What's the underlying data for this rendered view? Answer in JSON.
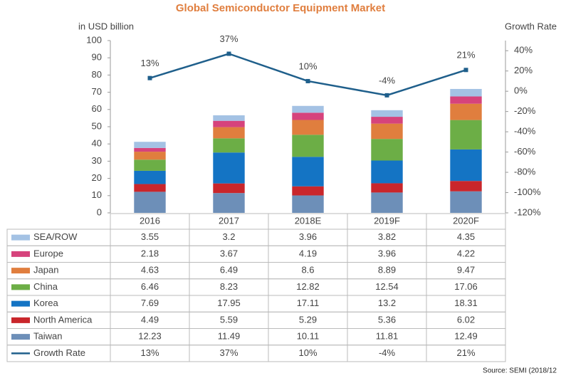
{
  "chart_data": {
    "type": "bar",
    "stacked": true,
    "title": "Global Semiconductor Equipment Market",
    "y_label": "in USD billion",
    "y2_label": "Growth Rate",
    "source": "Source: SEMI (2018/12",
    "categories": [
      "2016",
      "2017",
      "2018E",
      "2019F",
      "2020F"
    ],
    "ylim": [
      0,
      100
    ],
    "yticks": [
      0,
      10,
      20,
      30,
      40,
      50,
      60,
      70,
      80,
      90,
      100
    ],
    "y2lim": [
      -120,
      50
    ],
    "y2ticks": [
      {
        "value": -120,
        "label": "-120%"
      },
      {
        "value": -100,
        "label": "-100%"
      },
      {
        "value": -80,
        "label": "-80%"
      },
      {
        "value": -60,
        "label": "-60%"
      },
      {
        "value": -40,
        "label": "-40%"
      },
      {
        "value": -20,
        "label": "-20%"
      },
      {
        "value": 0,
        "label": "0%"
      },
      {
        "value": 20,
        "label": "20%"
      },
      {
        "value": 40,
        "label": "40%"
      }
    ],
    "grid": false,
    "series": [
      {
        "name": "Taiwan",
        "color": "#6d8fb8",
        "values": [
          12.23,
          11.49,
          10.11,
          11.81,
          12.49
        ]
      },
      {
        "name": "North America",
        "color": "#c9262b",
        "values": [
          4.49,
          5.59,
          5.29,
          5.36,
          6.02
        ]
      },
      {
        "name": "Korea",
        "color": "#1474c4",
        "values": [
          7.69,
          17.95,
          17.11,
          13.2,
          18.31
        ]
      },
      {
        "name": "China",
        "color": "#6cae46",
        "values": [
          6.46,
          8.23,
          12.82,
          12.54,
          17.06
        ]
      },
      {
        "name": "Japan",
        "color": "#e07e3e",
        "values": [
          4.63,
          6.49,
          8.6,
          8.89,
          9.47
        ]
      },
      {
        "name": "Europe",
        "color": "#d6437c",
        "values": [
          2.18,
          3.67,
          4.19,
          3.96,
          4.22
        ]
      },
      {
        "name": "SEA/ROW",
        "color": "#a4c2e4",
        "values": [
          3.55,
          3.2,
          3.96,
          3.82,
          4.35
        ]
      },
      {
        "name": "Growth Rate",
        "type": "line",
        "axis": "y2",
        "color": "#1f5f8b",
        "values": [
          13,
          37,
          10,
          -4,
          21
        ],
        "value_labels": [
          "13%",
          "37%",
          "10%",
          "-4%",
          "21%"
        ]
      }
    ]
  }
}
